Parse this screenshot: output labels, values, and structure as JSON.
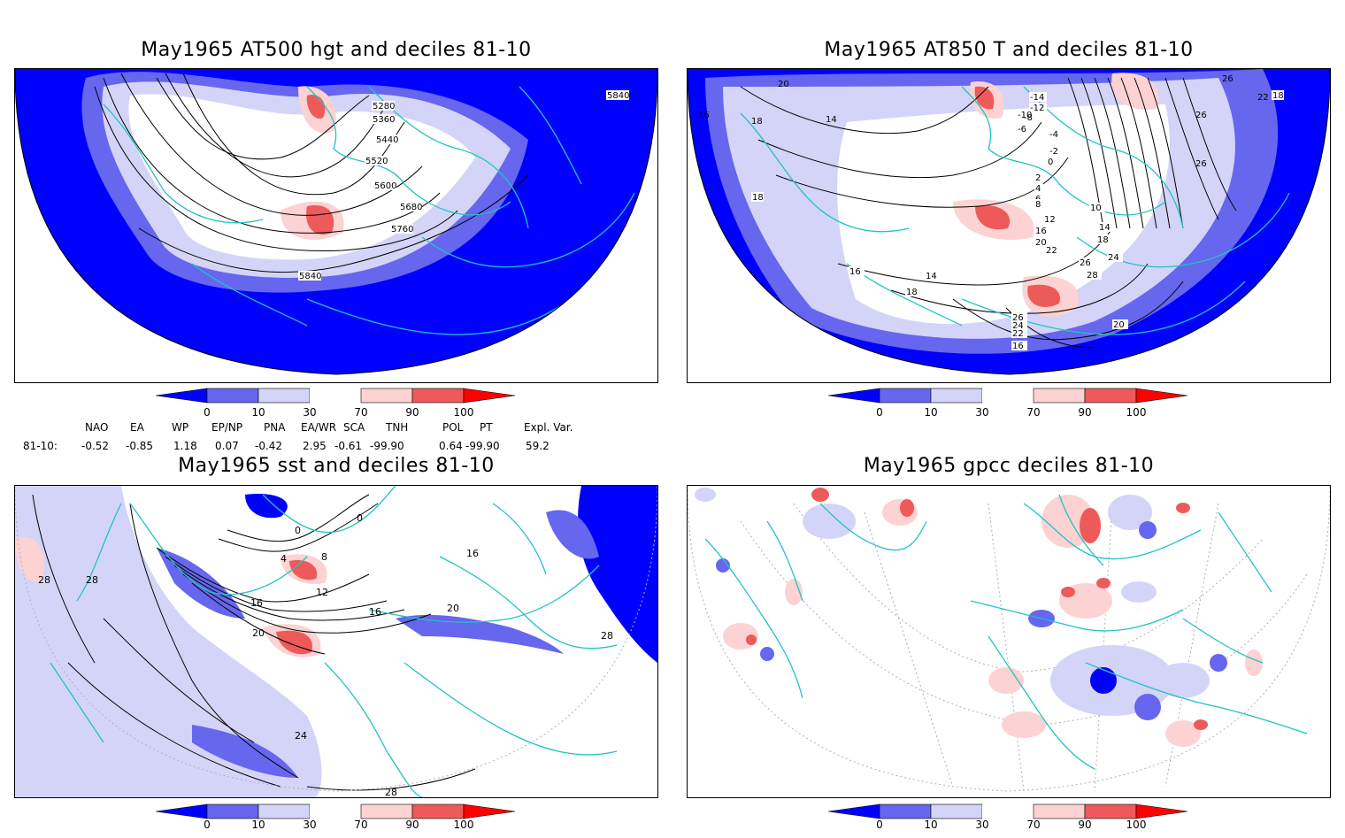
{
  "panels": {
    "tl": {
      "title": "May1965 AT500 hgt and deciles 81-10",
      "labels": [
        "5280",
        "5360",
        "5440",
        "5520",
        "5600",
        "5680",
        "5760",
        "5840",
        "5840"
      ]
    },
    "tr": {
      "title": "May1965 AT850 T and deciles 81-10",
      "labels": [
        "16",
        "20",
        "18",
        "14",
        "18",
        "16",
        "26",
        "22",
        "18",
        "26",
        "26",
        "-14",
        "-12",
        "-10",
        "-8",
        "-6",
        "-4",
        "-2",
        "0",
        "2",
        "4",
        "6",
        "8",
        "10",
        "12",
        "14",
        "16",
        "18",
        "20",
        "22",
        "24",
        "26",
        "28",
        "14",
        "16",
        "18",
        "20",
        "26",
        "24",
        "22",
        "16"
      ]
    },
    "bl": {
      "title": "May1965 sst and deciles 81-10",
      "labels": [
        "0",
        "0",
        "4",
        "8",
        "12",
        "16",
        "16",
        "20",
        "24",
        "28",
        "28",
        "28",
        "16",
        "20",
        "28"
      ]
    },
    "br": {
      "title": "May1965 gpcc deciles 81-10"
    }
  },
  "colorbar": {
    "ticks": [
      "0",
      "10",
      "30",
      "70",
      "90",
      "100"
    ],
    "colors": [
      "#0000ff",
      "#6666ee",
      "#d4d4f8",
      "#ffffff",
      "#fcd2d2",
      "#ee5a5a",
      "#ff0000"
    ]
  },
  "indices": {
    "headers": [
      "NAO",
      "EA",
      "WP",
      "EP/NP",
      "PNA",
      "EA/WR",
      "SCA",
      "TNH",
      "POL",
      "PT",
      "Expl. Var."
    ],
    "row_label": "81-10:",
    "values": [
      "-0.52",
      "-0.85",
      "1.18",
      "0.07",
      "-0.42",
      "2.95",
      "-0.61",
      "-99.90",
      "0.64",
      "-99.90",
      "59.2"
    ]
  },
  "colors": {
    "coast": "#22c3c3",
    "contour": "#000000"
  }
}
